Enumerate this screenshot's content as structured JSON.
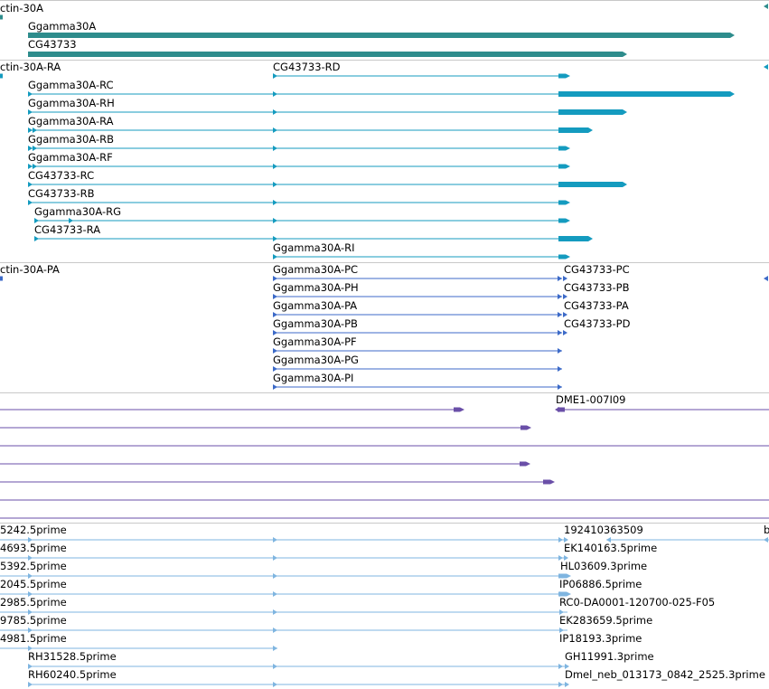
{
  "colors": {
    "gene": "#2e8c8c",
    "mrna": "#149bbf",
    "protein": "#3c6ac8",
    "clone": "#6a4fa8",
    "est": "#7fb5e0",
    "separator": "#c8c8c8"
  },
  "gene_track": {
    "labels": {
      "left_partial": "ctin-30A",
      "ggamma": "Ggamma30A",
      "cg": "CG43733"
    }
  },
  "mrna_track": {
    "labels": {
      "left_partial": "ctin-30A-RA",
      "rd": "CG43733-RD",
      "rc": "Ggamma30A-RC",
      "rh": "Ggamma30A-RH",
      "ra": "Ggamma30A-RA",
      "rb": "Ggamma30A-RB",
      "rf": "Ggamma30A-RF",
      "cg_rc": "CG43733-RC",
      "cg_rb": "CG43733-RB",
      "rg": "Ggamma30A-RG",
      "cg_ra": "CG43733-RA",
      "ri": "Ggamma30A-RI"
    }
  },
  "protein_track": {
    "labels": {
      "left_partial": "ctin-30A-PA",
      "pc": "Ggamma30A-PC",
      "ph": "Ggamma30A-PH",
      "pa": "Ggamma30A-PA",
      "pb": "Ggamma30A-PB",
      "pf": "Ggamma30A-PF",
      "pg": "Ggamma30A-PG",
      "pi": "Ggamma30A-PI",
      "cg_pc": "CG43733-PC",
      "cg_pb": "CG43733-PB",
      "cg_pa": "CG43733-PA",
      "cg_pd": "CG43733-PD"
    }
  },
  "clone_track": {
    "labels": {
      "dme1": "DME1-007I09"
    }
  },
  "est_track": {
    "labels": {
      "l1": "5242.5prime",
      "l2": "4693.5prime",
      "l3": "5392.5prime",
      "l4": "2045.5prime",
      "l5": "2985.5prime",
      "l6": "9785.5prime",
      "l7": "4981.5prime",
      "l8": "RH31528.5prime",
      "l9": "RH60240.5prime",
      "r1": "192410363509",
      "r2": "EK140163.5prime",
      "r3": "HL03609.3prime",
      "r4": "IP06886.5prime",
      "r5": "RC0-DA0001-120700-025-F05",
      "r6": "EK283659.5prime",
      "r7": "IP18193.3prime",
      "r8": "GH11991.3prime",
      "r9": "Dmel_neb_013173_0842_2525.3prime",
      "edge": "b"
    }
  }
}
